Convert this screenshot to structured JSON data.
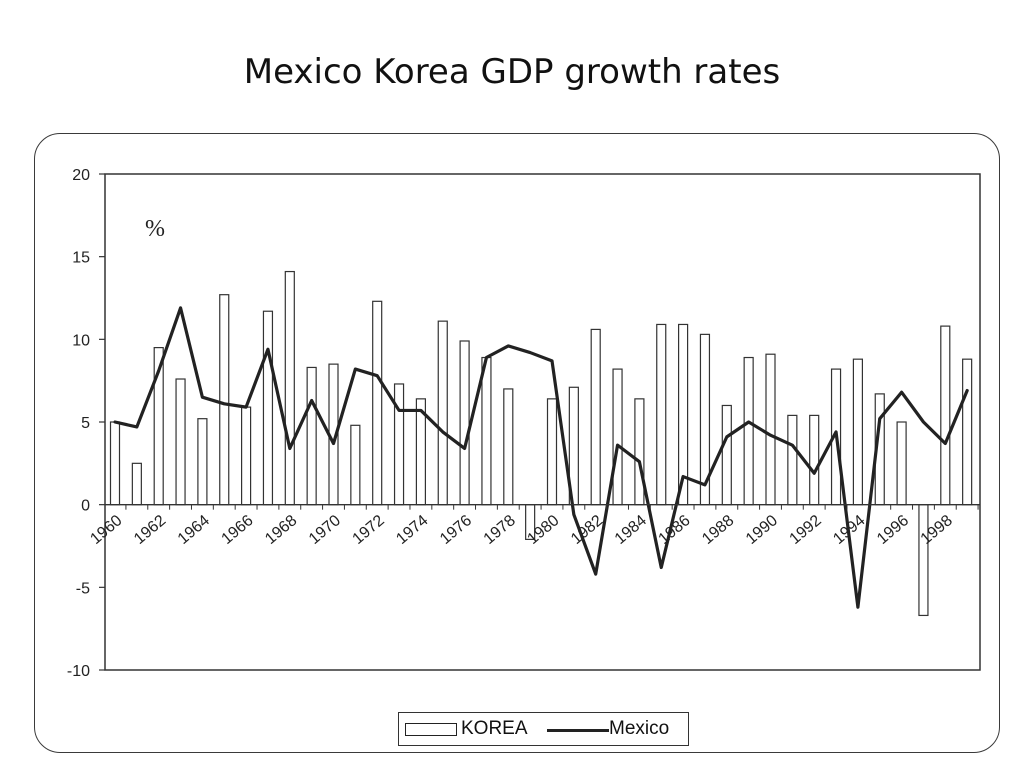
{
  "slide": {
    "title": "Mexico Korea GDP growth rates"
  },
  "chart_data": {
    "type": "bar",
    "title": "",
    "unit_label": "%",
    "ylim": [
      -10,
      20
    ],
    "yticks": [
      20,
      15,
      10,
      5,
      0,
      -5,
      -10
    ],
    "x_labels": [
      "1960",
      "1962",
      "1964",
      "1966",
      "1968",
      "1970",
      "1972",
      "1974",
      "1976",
      "1978",
      "1980",
      "1982",
      "1984",
      "1986",
      "1988",
      "1990",
      "1992",
      "1994",
      "1996",
      "1998"
    ],
    "grid": false,
    "legend_position": "bottom-center",
    "years": [
      1960,
      1961,
      1962,
      1963,
      1964,
      1965,
      1966,
      1967,
      1968,
      1969,
      1970,
      1971,
      1972,
      1973,
      1974,
      1975,
      1976,
      1977,
      1978,
      1979,
      1980,
      1981,
      1982,
      1983,
      1984,
      1985,
      1986,
      1987,
      1988,
      1989,
      1990,
      1991,
      1992,
      1993,
      1994,
      1995,
      1996,
      1997,
      1998,
      1999
    ],
    "series": [
      {
        "name": "KOREA",
        "type": "bar",
        "values": [
          5.0,
          2.5,
          9.5,
          7.6,
          5.2,
          12.7,
          5.9,
          11.7,
          14.1,
          8.3,
          8.5,
          4.8,
          12.3,
          7.3,
          6.4,
          11.1,
          9.9,
          8.9,
          7.0,
          -2.1,
          6.4,
          7.1,
          10.6,
          8.2,
          6.4,
          10.9,
          10.9,
          10.3,
          6.0,
          8.9,
          9.1,
          5.4,
          5.4,
          8.2,
          8.8,
          6.7,
          5.0,
          -6.7,
          10.8,
          8.8
        ]
      },
      {
        "name": "Mexico",
        "type": "line",
        "values": [
          5.0,
          4.7,
          8.1,
          11.9,
          6.5,
          6.1,
          5.9,
          9.4,
          3.4,
          6.3,
          3.7,
          8.2,
          7.8,
          5.7,
          5.7,
          4.4,
          3.4,
          8.9,
          9.6,
          9.2,
          8.7,
          -0.6,
          -4.2,
          3.6,
          2.6,
          -3.8,
          1.7,
          1.2,
          4.1,
          5.0,
          4.2,
          3.6,
          1.9,
          4.4,
          -6.2,
          5.2,
          6.8,
          5.0,
          3.7,
          6.9
        ]
      }
    ]
  },
  "legend": {
    "korea_label": "KOREA",
    "mexico_label": "Mexico"
  },
  "colors": {
    "bar_fill": "#ffffff",
    "bar_stroke": "#333333",
    "line": "#222222",
    "axis": "#333333"
  }
}
